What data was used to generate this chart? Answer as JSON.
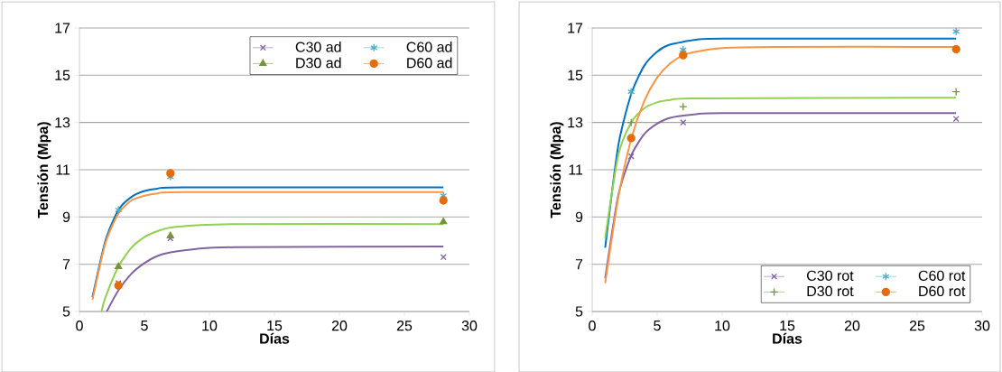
{
  "chart_data": [
    {
      "type": "scatter",
      "xlabel": "Días",
      "ylabel": "Tensión (Mpa)",
      "xlim": [
        0,
        30
      ],
      "ylim": [
        5,
        17
      ],
      "xticks": [
        0,
        5,
        10,
        15,
        20,
        25,
        30
      ],
      "yticks": [
        5,
        7,
        9,
        11,
        13,
        15,
        17
      ],
      "grid": "y",
      "legend": "top right",
      "series": [
        {
          "type": "line",
          "color": "#8064a2",
          "x": [
            2.1,
            3,
            4,
            5,
            6,
            7,
            9,
            12,
            28
          ],
          "values": [
            5.0,
            5.9,
            6.6,
            7.05,
            7.35,
            7.5,
            7.65,
            7.72,
            7.75
          ]
        },
        {
          "type": "line",
          "color": "#0070c0",
          "x": [
            1,
            2,
            3,
            4,
            5,
            6,
            8,
            28
          ],
          "values": [
            5.6,
            8.0,
            9.3,
            9.85,
            10.1,
            10.2,
            10.25,
            10.25
          ]
        },
        {
          "type": "line",
          "color": "#92d050",
          "x": [
            1.7,
            2,
            3,
            4,
            5,
            6,
            7,
            9,
            12,
            28
          ],
          "values": [
            5.0,
            5.6,
            6.9,
            7.7,
            8.15,
            8.4,
            8.55,
            8.65,
            8.7,
            8.7
          ]
        },
        {
          "type": "line",
          "color": "#f79646",
          "x": [
            1,
            2,
            3,
            4,
            5,
            6,
            8,
            28
          ],
          "values": [
            5.5,
            7.9,
            9.15,
            9.7,
            9.9,
            10.0,
            10.05,
            10.05
          ]
        },
        {
          "name": "C30 ad",
          "color": "#7f5fa0",
          "marker": "x",
          "x": [
            3,
            7,
            28
          ],
          "values": [
            6.2,
            8.1,
            7.3
          ]
        },
        {
          "name": "C60 ad",
          "color": "#4bacc6",
          "x": [
            3,
            7,
            28
          ],
          "values": [
            9.3,
            10.7,
            9.9
          ]
        },
        {
          "name": "D30 ad",
          "color": "#77933c",
          "marker": "triangle",
          "x": [
            3,
            7,
            28
          ],
          "values": [
            6.9,
            8.2,
            8.8
          ]
        },
        {
          "name": "D60 ad",
          "color": "#e46c0a",
          "marker": "circle",
          "x": [
            3,
            7,
            28
          ],
          "values": [
            6.1,
            10.85,
            9.7
          ]
        }
      ]
    },
    {
      "type": "scatter",
      "xlabel": "Días",
      "ylabel": "Tensión (Mpa)",
      "xlim": [
        0,
        30
      ],
      "ylim": [
        5,
        17
      ],
      "xticks": [
        0,
        5,
        10,
        15,
        20,
        25,
        30
      ],
      "yticks": [
        5,
        7,
        9,
        11,
        13,
        15,
        17
      ],
      "grid": "y",
      "legend": "bottom right",
      "series": [
        {
          "type": "line",
          "color": "#8064a2",
          "x": [
            1,
            2,
            3,
            4,
            5,
            6,
            8,
            10,
            28
          ],
          "values": [
            6.4,
            9.9,
            11.6,
            12.5,
            12.95,
            13.2,
            13.35,
            13.4,
            13.4
          ]
        },
        {
          "type": "line",
          "color": "#0070c0",
          "x": [
            1,
            2,
            3,
            4,
            5,
            6,
            8,
            10,
            28
          ],
          "values": [
            7.7,
            12.0,
            14.2,
            15.4,
            16.0,
            16.3,
            16.5,
            16.55,
            16.55
          ]
        },
        {
          "type": "line",
          "color": "#92d050",
          "x": [
            1,
            2,
            3,
            4,
            5,
            6,
            8,
            28
          ],
          "values": [
            8.1,
            11.6,
            13.0,
            13.6,
            13.85,
            13.95,
            14.02,
            14.05
          ]
        },
        {
          "type": "line",
          "color": "#f79646",
          "x": [
            1,
            2,
            3,
            4,
            5,
            6,
            7,
            8,
            10,
            14,
            28
          ],
          "values": [
            6.2,
            9.8,
            12.3,
            13.9,
            14.9,
            15.5,
            15.85,
            16.0,
            16.15,
            16.2,
            16.2
          ]
        },
        {
          "name": "C30 rot",
          "color": "#7f5fa0",
          "marker": "x",
          "x": [
            3,
            7,
            28
          ],
          "values": [
            11.57,
            13.0,
            13.15
          ]
        },
        {
          "name": "C60 rot",
          "color": "#4bacc6",
          "x": [
            3,
            7,
            28
          ],
          "values": [
            14.3,
            16.08,
            16.85
          ]
        },
        {
          "name": "D30 rot",
          "color": "#77933c",
          "marker": "cross",
          "x": [
            3,
            7,
            28
          ],
          "values": [
            13.0,
            13.67,
            14.3
          ]
        },
        {
          "name": "D60  rot",
          "color": "#e46c0a",
          "marker": "circle",
          "x": [
            3,
            7,
            28
          ],
          "values": [
            12.34,
            15.85,
            16.1
          ]
        }
      ]
    }
  ]
}
